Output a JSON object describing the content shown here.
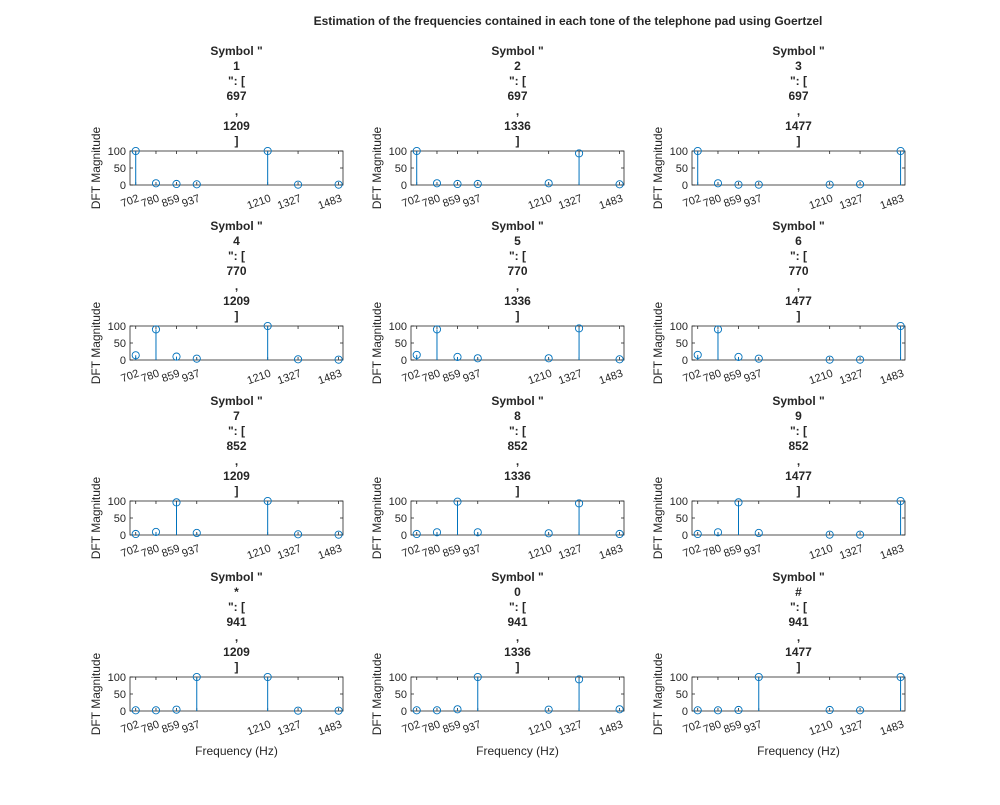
{
  "figure_title": "Estimation of the frequencies contained in each tone of the telephone pad using Goertzel",
  "colors": {
    "stem": "#0072BD",
    "axis": "#262626",
    "text": "#262626",
    "background": "#ffffff"
  },
  "chart_data": {
    "type": "stem",
    "suptitle": "Estimation of the frequencies contained in each tone of the telephone pad using Goertzel",
    "layout": {
      "rows": 4,
      "cols": 3
    },
    "x_ticks": [
      702,
      780,
      859,
      937,
      1210,
      1327,
      1483
    ],
    "xlim": [
      680,
      1500
    ],
    "ylim": [
      0,
      100
    ],
    "y_ticks": [
      0,
      50,
      100
    ],
    "ylabel": "DFT Magnitude",
    "xlabel": "Frequency (Hz)",
    "marker": "circle",
    "subplots": [
      {
        "title_lines": [
          "Symbol \"",
          "1",
          "\": [",
          "697",
          ",",
          "1209",
          "]"
        ],
        "x": [
          702,
          780,
          859,
          937,
          1210,
          1327,
          1483
        ],
        "values": [
          100,
          5,
          3,
          2,
          100,
          1,
          1
        ]
      },
      {
        "title_lines": [
          "Symbol \"",
          "2",
          "\": [",
          "697",
          ",",
          "1336",
          "]"
        ],
        "x": [
          702,
          780,
          859,
          937,
          1210,
          1327,
          1483
        ],
        "values": [
          100,
          5,
          3,
          3,
          5,
          93,
          2
        ]
      },
      {
        "title_lines": [
          "Symbol \"",
          "3",
          "\": [",
          "697",
          ",",
          "1477",
          "]"
        ],
        "x": [
          702,
          780,
          859,
          937,
          1210,
          1327,
          1483
        ],
        "values": [
          100,
          5,
          1,
          1,
          1,
          2,
          100
        ]
      },
      {
        "title_lines": [
          "Symbol \"",
          "4",
          "\": [",
          "770",
          ",",
          "1209",
          "]"
        ],
        "x": [
          702,
          780,
          859,
          937,
          1210,
          1327,
          1483
        ],
        "values": [
          14,
          90,
          10,
          4,
          100,
          2,
          1
        ]
      },
      {
        "title_lines": [
          "Symbol \"",
          "5",
          "\": [",
          "770",
          ",",
          "1336",
          "]"
        ],
        "x": [
          702,
          780,
          859,
          937,
          1210,
          1327,
          1483
        ],
        "values": [
          15,
          90,
          9,
          5,
          5,
          93,
          2
        ]
      },
      {
        "title_lines": [
          "Symbol \"",
          "6",
          "\": [",
          "770",
          ",",
          "1477",
          "]"
        ],
        "x": [
          702,
          780,
          859,
          937,
          1210,
          1327,
          1483
        ],
        "values": [
          15,
          90,
          9,
          4,
          1,
          1,
          100
        ]
      },
      {
        "title_lines": [
          "Symbol \"",
          "7",
          "\": [",
          "852",
          ",",
          "1209",
          "]"
        ],
        "x": [
          702,
          780,
          859,
          937,
          1210,
          1327,
          1483
        ],
        "values": [
          3,
          9,
          96,
          6,
          100,
          2,
          1
        ]
      },
      {
        "title_lines": [
          "Symbol \"",
          "8",
          "\": [",
          "852",
          ",",
          "1336",
          "]"
        ],
        "x": [
          702,
          780,
          859,
          937,
          1210,
          1327,
          1483
        ],
        "values": [
          3,
          8,
          98,
          8,
          5,
          93,
          3
        ]
      },
      {
        "title_lines": [
          "Symbol \"",
          "9",
          "\": [",
          "852",
          ",",
          "1477",
          "]"
        ],
        "x": [
          702,
          780,
          859,
          937,
          1210,
          1327,
          1483
        ],
        "values": [
          3,
          8,
          96,
          6,
          1,
          1,
          100
        ]
      },
      {
        "title_lines": [
          "Symbol \"",
          "*",
          "\": [",
          "941",
          ",",
          "1209",
          "]"
        ],
        "x": [
          702,
          780,
          859,
          937,
          1210,
          1327,
          1483
        ],
        "values": [
          2,
          2,
          4,
          100,
          100,
          1,
          1
        ]
      },
      {
        "title_lines": [
          "Symbol \"",
          "0",
          "\": [",
          "941",
          ",",
          "1336",
          "]"
        ],
        "x": [
          702,
          780,
          859,
          937,
          1210,
          1327,
          1483
        ],
        "values": [
          2,
          2,
          5,
          100,
          4,
          93,
          5
        ]
      },
      {
        "title_lines": [
          "Symbol \"",
          "#",
          "\": [",
          "941",
          ",",
          "1477",
          "]"
        ],
        "x": [
          702,
          780,
          859,
          937,
          1210,
          1327,
          1483
        ],
        "values": [
          2,
          2,
          3,
          100,
          3,
          2,
          100
        ]
      }
    ]
  }
}
